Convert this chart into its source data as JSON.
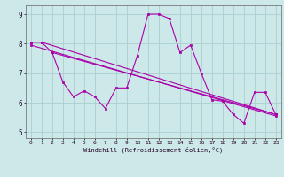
{
  "xlabel": "Windchill (Refroidissement éolien,°C)",
  "bg_color": "#cde8e8",
  "grid_color": "#aacfcf",
  "line_color": "#aa00aa",
  "xlim": [
    -0.5,
    23.5
  ],
  "ylim": [
    4.8,
    9.3
  ],
  "yticks": [
    5,
    6,
    7,
    8,
    9
  ],
  "xticks": [
    0,
    1,
    2,
    3,
    4,
    5,
    6,
    7,
    8,
    9,
    10,
    11,
    12,
    13,
    14,
    15,
    16,
    17,
    18,
    19,
    20,
    21,
    22,
    23
  ],
  "series1_x": [
    0,
    1,
    2,
    3,
    4,
    5,
    6,
    7,
    8,
    9,
    10,
    11,
    12,
    13,
    14,
    15,
    16,
    17,
    18,
    19,
    20,
    21,
    22,
    23
  ],
  "series1_y": [
    8.05,
    8.05,
    7.7,
    6.7,
    6.2,
    6.4,
    6.2,
    5.8,
    6.5,
    6.5,
    7.6,
    9.0,
    9.0,
    8.85,
    7.7,
    7.95,
    7.0,
    6.1,
    6.05,
    5.6,
    5.3,
    6.35,
    6.35,
    5.6
  ],
  "series2_x": [
    0,
    1,
    23
  ],
  "series2_y": [
    8.05,
    8.05,
    5.6
  ],
  "series3_x": [
    2,
    23
  ],
  "series3_y": [
    7.7,
    5.6
  ],
  "series4_x": [
    0,
    23
  ],
  "series4_y": [
    7.95,
    5.55
  ]
}
